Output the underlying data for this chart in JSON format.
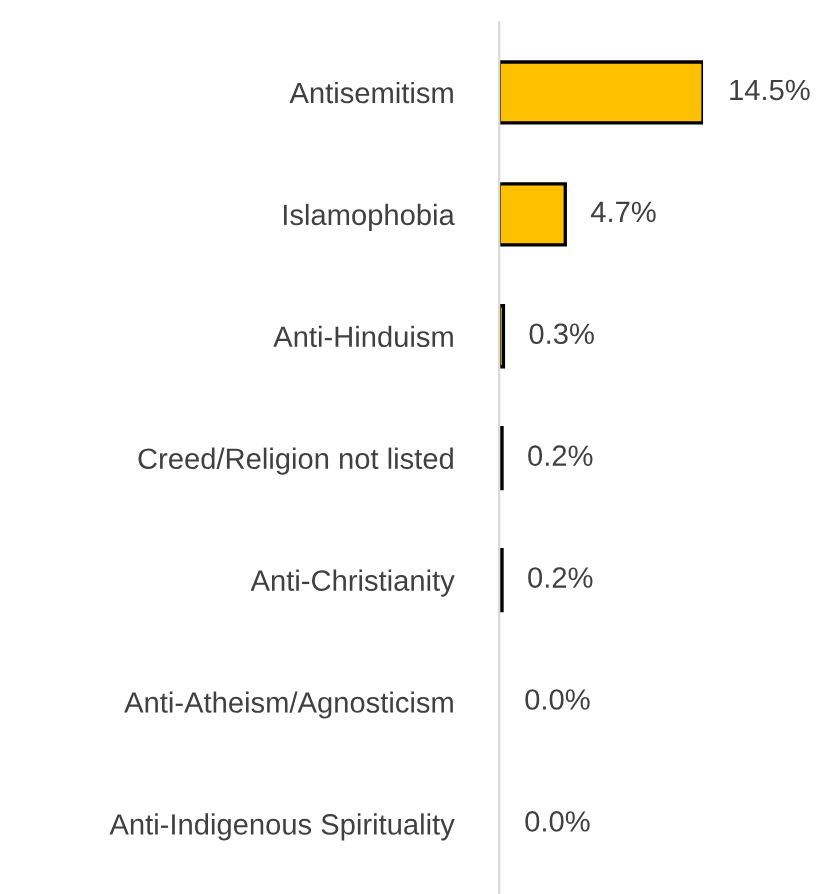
{
  "chart_data": {
    "type": "bar",
    "orientation": "horizontal",
    "categories": [
      "Antisemitism",
      "Islamophobia",
      "Anti-Hinduism",
      "Creed/Religion not listed",
      "Anti-Christianity",
      "Anti-Atheism/Agnosticism",
      "Anti-Indigenous Spirituality"
    ],
    "values": [
      14.5,
      4.7,
      0.3,
      0.2,
      0.2,
      0.0,
      0.0
    ],
    "value_labels": [
      "14.5%",
      "4.7%",
      "0.3%",
      "0.2%",
      "0.2%",
      "0.0%",
      "0.0%"
    ],
    "color": "#ffc000",
    "grid": false,
    "legend": false,
    "tick_labels": "y"
  }
}
